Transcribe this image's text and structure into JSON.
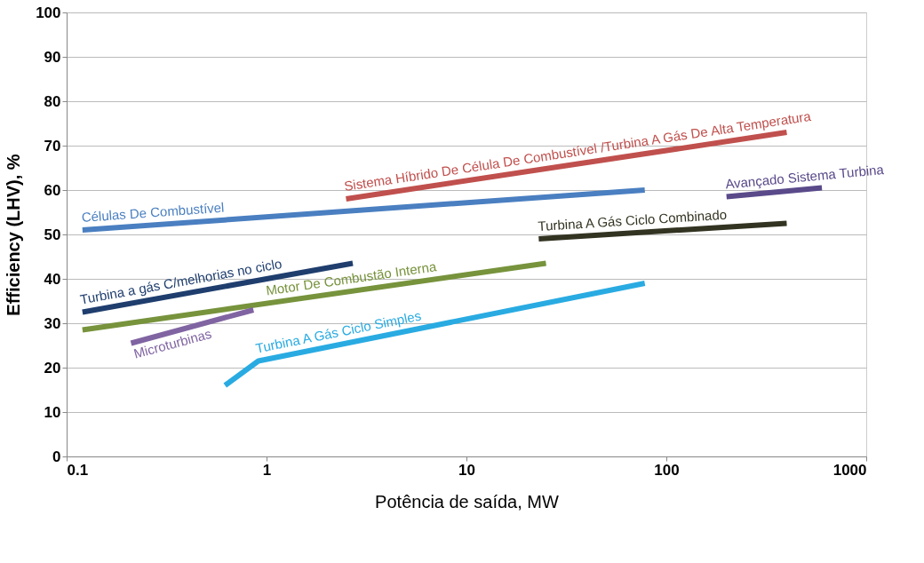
{
  "chart_data": {
    "type": "line",
    "xlabel": "Potência de saída, MW",
    "ylabel": "Efficiency (LHV), %",
    "log": "x",
    "grid": "y",
    "legend": false,
    "marker": "none",
    "line_style": "solid",
    "xlim": [
      0.1,
      1000
    ],
    "xticks": [
      0.1,
      1,
      10,
      100,
      1000
    ],
    "ylim": [
      0,
      100
    ],
    "yticks": [
      0,
      10,
      20,
      30,
      40,
      50,
      60,
      70,
      80,
      90,
      100
    ],
    "series": [
      {
        "name": "Células De Combustível",
        "color": "#4a7fc1",
        "x": [
          0.12,
          78
        ],
        "values": [
          51,
          60
        ]
      },
      {
        "name": "Sistema Híbrido De Célula De Combustível /Turbina A Gás De Alta Temperatura",
        "color": "#c0504d",
        "x": [
          2.5,
          400
        ],
        "values": [
          58,
          73
        ]
      },
      {
        "name": "Avançado Sistema Turbina",
        "color": "#5a4a8a",
        "x": [
          200,
          600
        ],
        "values": [
          58.5,
          60.5
        ]
      },
      {
        "name": "Turbina A Gás Ciclo Combinado",
        "color": "#333322",
        "x": [
          23,
          400
        ],
        "values": [
          49,
          52.5
        ]
      },
      {
        "name": "Turbina a gás C/melhorias no ciclo",
        "color": "#1f3e6e",
        "x": [
          0.12,
          2.7
        ],
        "values": [
          32.5,
          43.5
        ]
      },
      {
        "name": "Motor De Combustão Interna",
        "color": "#77933c",
        "x": [
          0.12,
          25
        ],
        "values": [
          28.5,
          43.5
        ]
      },
      {
        "name": "Microturbinas",
        "color": "#8064a2",
        "x": [
          0.21,
          0.86
        ],
        "values": [
          25.5,
          33
        ]
      },
      {
        "name": "Turbina A Gás Ciclo Simples",
        "color": "#29abe2",
        "x": [
          0.62,
          0.91,
          78
        ],
        "values": [
          16,
          21.5,
          39
        ]
      }
    ]
  }
}
